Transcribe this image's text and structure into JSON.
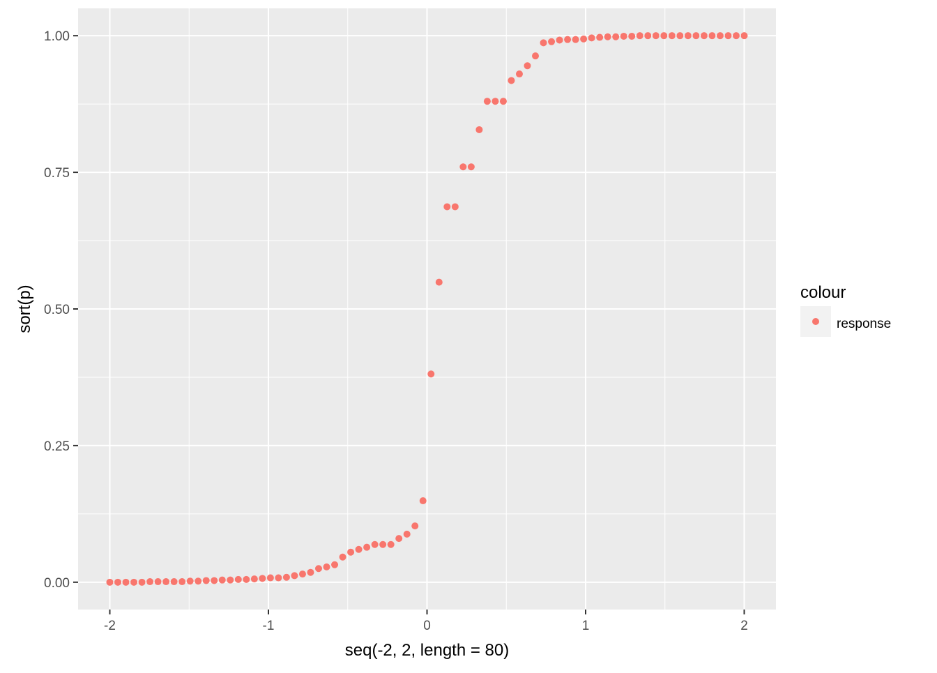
{
  "chart_data": {
    "type": "scatter",
    "title": "",
    "xlabel": "seq(-2, 2, length = 80)",
    "ylabel": "sort(p)",
    "xlim": [
      -2.2,
      2.2
    ],
    "ylim": [
      -0.05,
      1.05
    ],
    "x_ticks": [
      -2,
      -1,
      0,
      1,
      2
    ],
    "x_tick_labels": [
      "-2",
      "-1",
      "0",
      "1",
      "2"
    ],
    "y_ticks": [
      0,
      0.25,
      0.5,
      0.75,
      1
    ],
    "y_tick_labels": [
      "0.00",
      "0.25",
      "0.50",
      "0.75",
      "1.00"
    ],
    "grid": true,
    "legend_position": "right",
    "legend": {
      "title": "colour",
      "entries": [
        "response"
      ]
    },
    "colors": {
      "panel": "#ebebeb",
      "grid": "#ffffff",
      "point": "#f8766d"
    },
    "series": [
      {
        "name": "response",
        "x_start": -2,
        "x_end": 2,
        "y": [
          0.0,
          0.0,
          0.0,
          0.0,
          0.0,
          0.001,
          0.001,
          0.001,
          0.001,
          0.001,
          0.002,
          0.002,
          0.003,
          0.003,
          0.004,
          0.004,
          0.005,
          0.005,
          0.006,
          0.007,
          0.008,
          0.008,
          0.009,
          0.012,
          0.015,
          0.018,
          0.025,
          0.028,
          0.032,
          0.046,
          0.055,
          0.06,
          0.064,
          0.069,
          0.069,
          0.069,
          0.08,
          0.088,
          0.103,
          0.149,
          0.381,
          0.549,
          0.687,
          0.687,
          0.76,
          0.76,
          0.828,
          0.88,
          0.88,
          0.88,
          0.918,
          0.93,
          0.945,
          0.963,
          0.987,
          0.989,
          0.992,
          0.993,
          0.993,
          0.994,
          0.996,
          0.997,
          0.998,
          0.998,
          0.999,
          0.999,
          1.0,
          1.0,
          1.0,
          1.0,
          1.0,
          1.0,
          1.0,
          1.0,
          1.0,
          1.0,
          1.0,
          1.0,
          1.0,
          1.0
        ]
      }
    ]
  }
}
